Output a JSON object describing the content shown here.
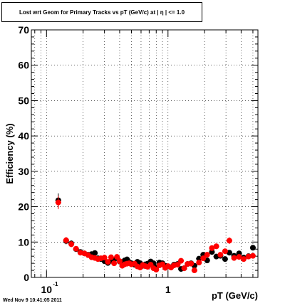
{
  "chart_data": {
    "type": "scatter",
    "title": "Lost wrt Geom for Primary Tracks vs pT (GeV/c) at |  η | <= 1.0",
    "xlabel": "pT (GeV/c)",
    "ylabel": "Efficiency (%)",
    "xscale": "log",
    "xlim": [
      0.075,
      5.5
    ],
    "ylim": [
      0,
      70
    ],
    "grid": true,
    "y_ticks": [
      0,
      10,
      20,
      30,
      40,
      50,
      60,
      70
    ],
    "y_tick_labels": [
      "0",
      "10",
      "20",
      "30",
      "40",
      "50",
      "60",
      "70"
    ],
    "x_tick_labels": [
      {
        "value": 0.1,
        "base": "10",
        "exp": "-1"
      },
      {
        "value": 1,
        "base": "1",
        "exp": ""
      }
    ],
    "series": [
      {
        "color": "#000000",
        "x": [
          0.125,
          0.145,
          0.16,
          0.175,
          0.19,
          0.205,
          0.22,
          0.235,
          0.25,
          0.265,
          0.28,
          0.3,
          0.32,
          0.34,
          0.36,
          0.38,
          0.4,
          0.42,
          0.44,
          0.46,
          0.48,
          0.5,
          0.53,
          0.56,
          0.59,
          0.62,
          0.65,
          0.68,
          0.72,
          0.76,
          0.8,
          0.85,
          0.9,
          0.95,
          1.0,
          1.06,
          1.12,
          1.2,
          1.28,
          1.36,
          1.45,
          1.55,
          1.65,
          1.8,
          1.95,
          2.1,
          2.3,
          2.5,
          2.7,
          2.95,
          3.2,
          3.5,
          3.85,
          4.2,
          4.6,
          5.0
        ],
        "y": [
          21.8,
          10.3,
          9.6,
          8.0,
          7.2,
          6.8,
          6.4,
          6.6,
          6.9,
          5.4,
          5.2,
          4.6,
          4.1,
          4.7,
          5.0,
          5.6,
          4.5,
          4.2,
          4.8,
          5.1,
          4.3,
          4.0,
          3.6,
          4.4,
          4.0,
          3.3,
          3.7,
          3.9,
          4.5,
          4.0,
          2.9,
          4.2,
          4.0,
          3.3,
          3.1,
          2.9,
          3.6,
          3.8,
          2.4,
          2.6,
          3.8,
          4.0,
          3.3,
          5.3,
          6.4,
          4.8,
          7.2,
          5.9,
          6.1,
          5.2,
          7.0,
          6.1,
          6.8,
          5.6,
          6.0,
          8.4
        ]
      },
      {
        "color": "#ff0000",
        "x": [
          0.125,
          0.145,
          0.16,
          0.175,
          0.19,
          0.205,
          0.22,
          0.235,
          0.25,
          0.265,
          0.28,
          0.3,
          0.32,
          0.34,
          0.36,
          0.38,
          0.4,
          0.42,
          0.44,
          0.46,
          0.48,
          0.5,
          0.53,
          0.56,
          0.59,
          0.62,
          0.65,
          0.68,
          0.72,
          0.76,
          0.8,
          0.85,
          0.9,
          0.95,
          1.0,
          1.06,
          1.12,
          1.2,
          1.28,
          1.36,
          1.45,
          1.55,
          1.65,
          1.8,
          1.95,
          2.1,
          2.3,
          2.5,
          2.7,
          2.95,
          3.2,
          3.5,
          3.85,
          4.2,
          4.6,
          5.0
        ],
        "y": [
          21.2,
          10.5,
          9.4,
          8.1,
          7.0,
          6.8,
          6.3,
          5.7,
          5.5,
          5.2,
          5.4,
          5.6,
          4.4,
          5.7,
          4.0,
          5.8,
          4.6,
          3.3,
          3.7,
          3.9,
          4.0,
          3.7,
          3.9,
          3.1,
          2.8,
          3.5,
          3.2,
          3.0,
          3.6,
          2.6,
          2.2,
          3.4,
          3.7,
          2.7,
          3.2,
          2.8,
          3.4,
          3.6,
          4.7,
          2.6,
          3.8,
          3.9,
          2.0,
          4.2,
          5.4,
          6.4,
          8.3,
          8.8,
          6.4,
          7.4,
          10.4,
          5.5,
          5.8,
          5.2,
          5.9,
          6.1
        ]
      }
    ]
  },
  "footer": {
    "timestamp": "Wed Nov  9 10:41:05 2011"
  }
}
